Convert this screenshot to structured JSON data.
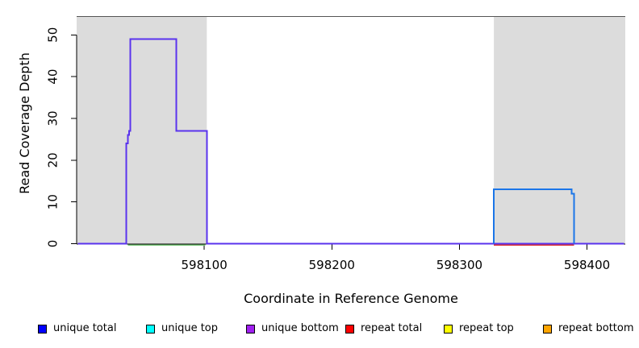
{
  "figure": {
    "background": "#FFFFFF",
    "band_color": "#DCDCDC",
    "top_border_color": "#555555",
    "axis_color": "#000000"
  },
  "chart_data": {
    "type": "line",
    "title": "",
    "xlabel": "Coordinate in Reference Genome",
    "ylabel": "Read Coverage Depth",
    "xlim": [
      598000,
      598430
    ],
    "ylim": [
      0,
      54.4
    ],
    "x_ticks": [
      598100,
      598200,
      598300,
      598400
    ],
    "y_ticks": [
      0,
      10,
      20,
      30,
      40,
      50
    ],
    "grid": false,
    "legend_position": "bottom",
    "shaded_regions": [
      {
        "name": "left-gray-band",
        "x0": 598000,
        "x1": 598102
      },
      {
        "name": "right-gray-band",
        "x0": 598327,
        "x1": 598430
      }
    ],
    "series": [
      {
        "name": "green baseline (left region)",
        "color": "#77C877",
        "points": [
          [
            598040,
            0
          ],
          [
            598101,
            0
          ]
        ]
      },
      {
        "name": "repeat total baseline (right region)",
        "color": "#DD3333",
        "points": [
          [
            598327,
            0
          ],
          [
            598390,
            0
          ]
        ]
      },
      {
        "name": "unique bottom (left step peak)",
        "color": "#5A33EE",
        "points": [
          [
            598001,
            0
          ],
          [
            598039,
            0
          ],
          [
            598039,
            24
          ],
          [
            598040,
            24
          ],
          [
            598040,
            26
          ],
          [
            598041,
            26
          ],
          [
            598041,
            27
          ],
          [
            598042,
            27
          ],
          [
            598042,
            49
          ],
          [
            598078,
            49
          ],
          [
            598078,
            27
          ],
          [
            598102,
            27
          ],
          [
            598102,
            0
          ],
          [
            598429,
            0
          ]
        ]
      },
      {
        "name": "unique total (right step block)",
        "color": "#1B76E8",
        "points": [
          [
            598327,
            0
          ],
          [
            598327,
            13
          ],
          [
            598388,
            13
          ],
          [
            598388,
            12
          ],
          [
            598390,
            12
          ],
          [
            598390,
            0
          ]
        ]
      }
    ]
  },
  "legend": {
    "items": [
      {
        "label": "unique total",
        "color": "#0000FF"
      },
      {
        "label": "unique top",
        "color": "#00FFFF"
      },
      {
        "label": "unique bottom",
        "color": "#A020F0"
      },
      {
        "label": "repeat total",
        "color": "#FF0000"
      },
      {
        "label": "repeat top",
        "color": "#FFFF00"
      },
      {
        "label": "repeat bottom",
        "color": "#FFA500"
      }
    ]
  }
}
